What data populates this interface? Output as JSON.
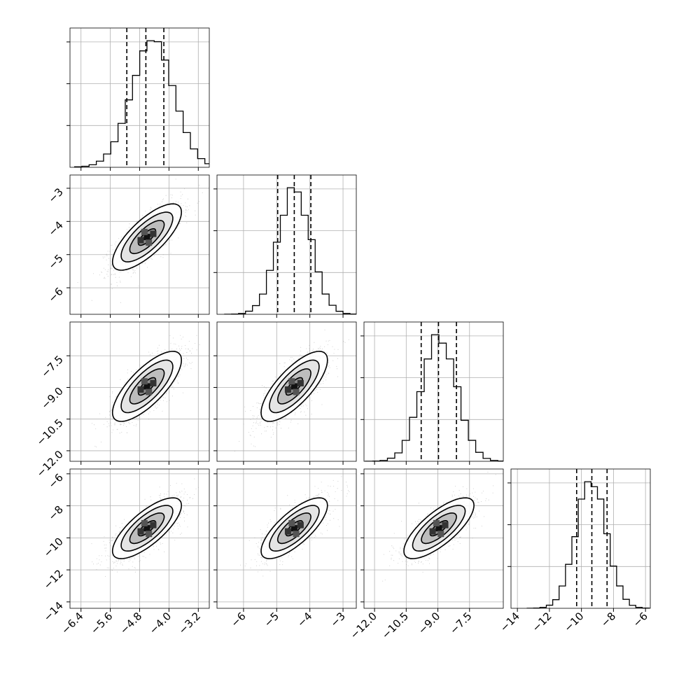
{
  "chart_data": {
    "type": "corner",
    "title": "",
    "grid": true,
    "parameters": [
      {
        "index": 0,
        "range": [
          -6.7,
          -2.9
        ],
        "ticks": [
          -6.4,
          -5.6,
          -4.8,
          -4.0,
          -3.2
        ],
        "tick_labels": [
          "−6.4",
          "−5.6",
          "−4.8",
          "−4.0",
          "−3.2"
        ],
        "quantiles": [
          -5.15,
          -4.63,
          -4.14
        ],
        "mu": -4.6,
        "sigma": 0.47
      },
      {
        "index": 1,
        "range": [
          -6.8,
          -2.6
        ],
        "ticks": [
          -6,
          -5,
          -4,
          -3
        ],
        "tick_labels": [
          "−6",
          "−5",
          "−4",
          "−3"
        ],
        "quantiles": [
          -4.97,
          -4.47,
          -3.97
        ],
        "mu": -4.47,
        "sigma": 0.5
      },
      {
        "index": 2,
        "range": [
          -12.5,
          -5.9
        ],
        "ticks": [
          -12.0,
          -10.5,
          -9.0,
          -7.5
        ],
        "tick_labels": [
          "−12.0",
          "−10.5",
          "−9.0",
          "−7.5"
        ],
        "quantiles": [
          -9.79,
          -8.97,
          -8.12
        ],
        "mu": -8.95,
        "sigma": 0.83
      },
      {
        "index": 3,
        "range": [
          -14.4,
          -5.7
        ],
        "ticks": [
          -14,
          -12,
          -10,
          -8,
          -6
        ],
        "tick_labels": [
          "−14",
          "−12",
          "−10",
          "−8",
          "−6"
        ],
        "quantiles": [
          -10.3,
          -9.35,
          -8.4
        ],
        "mu": -9.4,
        "sigma": 0.95
      }
    ],
    "correlation": 0.75,
    "histogram": {
      "bins": 20,
      "p0_counts": [
        1,
        2,
        5,
        12,
        26,
        50,
        86,
        132,
        180,
        228,
        248,
        246,
        210,
        160,
        110,
        68,
        36,
        17,
        7,
        2
      ]
    },
    "contour_levels": [
      "0.5σ",
      "1σ",
      "1.5σ",
      "2σ"
    ]
  }
}
